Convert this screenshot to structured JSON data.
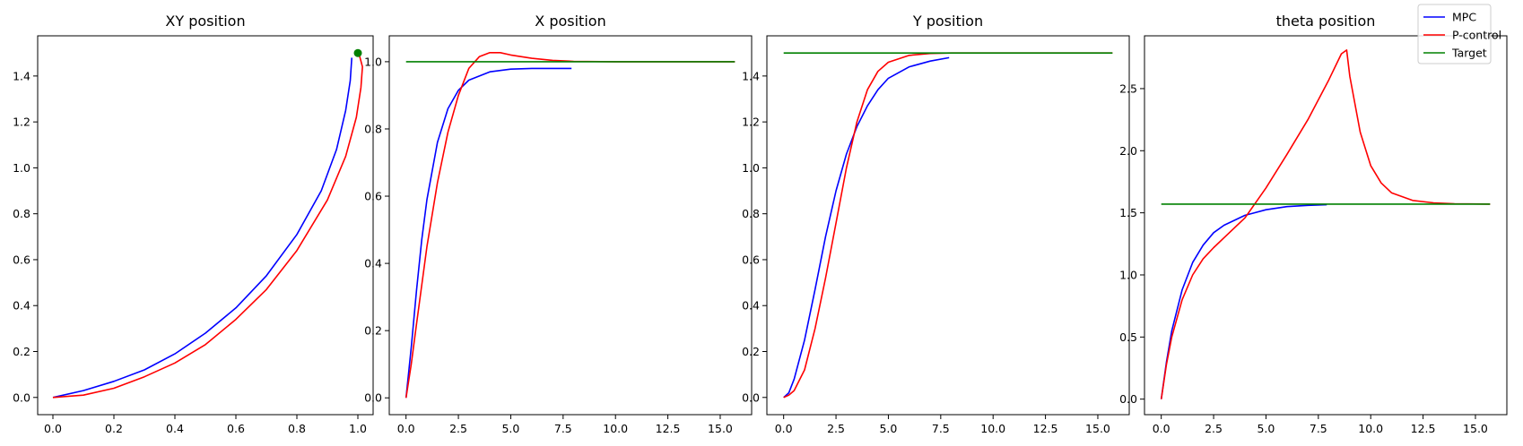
{
  "legend": {
    "entries": [
      {
        "label": "MPC",
        "color": "#0000ff"
      },
      {
        "label": "P-control",
        "color": "#ff0000"
      },
      {
        "label": "Target",
        "color": "#008000"
      }
    ]
  },
  "chart_data": [
    {
      "type": "line",
      "title": "XY position",
      "xlim": [
        -0.05,
        1.05
      ],
      "ylim": [
        -0.075,
        1.575
      ],
      "xticks": [
        0.0,
        0.2,
        0.4,
        0.6,
        0.8,
        1.0
      ],
      "xtick_labels": [
        "0.0",
        "0.2",
        "0.4",
        "0.6",
        "0.8",
        "1.0"
      ],
      "yticks": [
        0.0,
        0.2,
        0.4,
        0.6,
        0.8,
        1.0,
        1.2,
        1.4
      ],
      "ytick_labels": [
        "0.0",
        "0.2",
        "0.4",
        "0.6",
        "0.8",
        "1.0",
        "1.2",
        "1.4"
      ],
      "series": [
        {
          "name": "MPC",
          "color": "#0000ff",
          "points": [
            [
              0,
              0
            ],
            [
              0.1,
              0.03
            ],
            [
              0.2,
              0.07
            ],
            [
              0.3,
              0.12
            ],
            [
              0.4,
              0.19
            ],
            [
              0.5,
              0.28
            ],
            [
              0.6,
              0.39
            ],
            [
              0.7,
              0.53
            ],
            [
              0.8,
              0.71
            ],
            [
              0.88,
              0.9
            ],
            [
              0.93,
              1.08
            ],
            [
              0.96,
              1.25
            ],
            [
              0.975,
              1.38
            ],
            [
              0.98,
              1.48
            ]
          ]
        },
        {
          "name": "P-control",
          "color": "#ff0000",
          "points": [
            [
              0,
              0
            ],
            [
              0.1,
              0.01
            ],
            [
              0.2,
              0.04
            ],
            [
              0.3,
              0.09
            ],
            [
              0.4,
              0.15
            ],
            [
              0.5,
              0.23
            ],
            [
              0.6,
              0.34
            ],
            [
              0.7,
              0.47
            ],
            [
              0.8,
              0.64
            ],
            [
              0.9,
              0.86
            ],
            [
              0.96,
              1.05
            ],
            [
              0.995,
              1.22
            ],
            [
              1.01,
              1.35
            ],
            [
              1.015,
              1.44
            ],
            [
              1.005,
              1.49
            ],
            [
              0.99,
              1.5
            ]
          ]
        }
      ],
      "markers": [
        {
          "name": "Target",
          "color": "#008000",
          "x": 1.0,
          "y": 1.5
        }
      ]
    },
    {
      "type": "line",
      "title": "X position",
      "xlim": [
        -0.8,
        16.5
      ],
      "ylim": [
        -0.05,
        1.077
      ],
      "xticks": [
        0.0,
        2.5,
        5.0,
        7.5,
        10.0,
        12.5,
        15.0
      ],
      "xtick_labels": [
        "0.0",
        "2.5",
        "5.0",
        "7.5",
        "10.0",
        "12.5",
        "15.0"
      ],
      "yticks": [
        0.0,
        0.2,
        0.4,
        0.6,
        0.8,
        1.0
      ],
      "ytick_labels": [
        "0.0",
        "0.2",
        "0.4",
        "0.6",
        "0.8",
        "1.0"
      ],
      "series": [
        {
          "name": "MPC",
          "color": "#0000ff",
          "points": [
            [
              0,
              0
            ],
            [
              0.25,
              0.15
            ],
            [
              0.5,
              0.32
            ],
            [
              0.75,
              0.47
            ],
            [
              1.0,
              0.59
            ],
            [
              1.5,
              0.76
            ],
            [
              2.0,
              0.86
            ],
            [
              2.5,
              0.915
            ],
            [
              3.0,
              0.945
            ],
            [
              4.0,
              0.97
            ],
            [
              5.0,
              0.978
            ],
            [
              6.0,
              0.98
            ],
            [
              7.0,
              0.98
            ],
            [
              7.9,
              0.98
            ]
          ]
        },
        {
          "name": "P-control",
          "color": "#ff0000",
          "points": [
            [
              0,
              0
            ],
            [
              0.25,
              0.1
            ],
            [
              0.5,
              0.22
            ],
            [
              1.0,
              0.45
            ],
            [
              1.5,
              0.64
            ],
            [
              2.0,
              0.79
            ],
            [
              2.5,
              0.9
            ],
            [
              3.0,
              0.98
            ],
            [
              3.5,
              1.015
            ],
            [
              4.0,
              1.027
            ],
            [
              4.5,
              1.027
            ],
            [
              5.0,
              1.02
            ],
            [
              6.0,
              1.01
            ],
            [
              7.0,
              1.004
            ],
            [
              8.0,
              1.001
            ],
            [
              10.0,
              1.0
            ],
            [
              12.0,
              1.0
            ],
            [
              15.7,
              1.0
            ]
          ]
        },
        {
          "name": "Target",
          "color": "#008000",
          "points": [
            [
              0,
              1.0
            ],
            [
              15.7,
              1.0
            ]
          ]
        }
      ]
    },
    {
      "type": "line",
      "title": "Y position",
      "xlim": [
        -0.8,
        16.5
      ],
      "ylim": [
        -0.075,
        1.575
      ],
      "xticks": [
        0.0,
        2.5,
        5.0,
        7.5,
        10.0,
        12.5,
        15.0
      ],
      "xtick_labels": [
        "0.0",
        "2.5",
        "5.0",
        "7.5",
        "10.0",
        "12.5",
        "15.0"
      ],
      "yticks": [
        0.0,
        0.2,
        0.4,
        0.6,
        0.8,
        1.0,
        1.2,
        1.4
      ],
      "ytick_labels": [
        "0.0",
        "0.2",
        "0.4",
        "0.6",
        "0.8",
        "1.0",
        "1.2",
        "1.4"
      ],
      "series": [
        {
          "name": "MPC",
          "color": "#0000ff",
          "points": [
            [
              0,
              0
            ],
            [
              0.25,
              0.02
            ],
            [
              0.5,
              0.08
            ],
            [
              1.0,
              0.25
            ],
            [
              1.5,
              0.47
            ],
            [
              2.0,
              0.7
            ],
            [
              2.5,
              0.9
            ],
            [
              3.0,
              1.06
            ],
            [
              3.5,
              1.18
            ],
            [
              4.0,
              1.27
            ],
            [
              4.5,
              1.34
            ],
            [
              5.0,
              1.39
            ],
            [
              6.0,
              1.44
            ],
            [
              7.0,
              1.465
            ],
            [
              7.9,
              1.48
            ]
          ]
        },
        {
          "name": "P-control",
          "color": "#ff0000",
          "points": [
            [
              0,
              0
            ],
            [
              0.25,
              0.01
            ],
            [
              0.5,
              0.03
            ],
            [
              1.0,
              0.12
            ],
            [
              1.5,
              0.3
            ],
            [
              2.0,
              0.52
            ],
            [
              2.5,
              0.76
            ],
            [
              3.0,
              1.0
            ],
            [
              3.5,
              1.2
            ],
            [
              4.0,
              1.34
            ],
            [
              4.5,
              1.42
            ],
            [
              5.0,
              1.46
            ],
            [
              6.0,
              1.49
            ],
            [
              7.0,
              1.498
            ],
            [
              8.0,
              1.5
            ],
            [
              10.0,
              1.5
            ],
            [
              12.0,
              1.5
            ],
            [
              15.7,
              1.5
            ]
          ]
        },
        {
          "name": "Target",
          "color": "#008000",
          "points": [
            [
              0,
              1.5
            ],
            [
              15.7,
              1.5
            ]
          ]
        }
      ]
    },
    {
      "type": "line",
      "title": "theta position",
      "xlim": [
        -0.8,
        16.5
      ],
      "ylim": [
        -0.125,
        2.925
      ],
      "xticks": [
        0.0,
        2.5,
        5.0,
        7.5,
        10.0,
        12.5,
        15.0
      ],
      "xtick_labels": [
        "0.0",
        "2.5",
        "5.0",
        "7.5",
        "10.0",
        "12.5",
        "15.0"
      ],
      "yticks": [
        0.0,
        0.5,
        1.0,
        1.5,
        2.0,
        2.5
      ],
      "ytick_labels": [
        "0.0",
        "0.5",
        "1.0",
        "1.5",
        "2.0",
        "2.5"
      ],
      "series": [
        {
          "name": "MPC",
          "color": "#0000ff",
          "points": [
            [
              0,
              0
            ],
            [
              0.25,
              0.3
            ],
            [
              0.5,
              0.55
            ],
            [
              1.0,
              0.88
            ],
            [
              1.5,
              1.1
            ],
            [
              2.0,
              1.24
            ],
            [
              2.5,
              1.34
            ],
            [
              3.0,
              1.4
            ],
            [
              4.0,
              1.48
            ],
            [
              5.0,
              1.525
            ],
            [
              6.0,
              1.55
            ],
            [
              7.0,
              1.56
            ],
            [
              7.9,
              1.565
            ]
          ]
        },
        {
          "name": "P-control",
          "color": "#ff0000",
          "points": [
            [
              0,
              0
            ],
            [
              0.25,
              0.28
            ],
            [
              0.5,
              0.5
            ],
            [
              1.0,
              0.8
            ],
            [
              1.5,
              1.0
            ],
            [
              2.0,
              1.13
            ],
            [
              2.5,
              1.22
            ],
            [
              3.0,
              1.3
            ],
            [
              4.0,
              1.46
            ],
            [
              5.0,
              1.7
            ],
            [
              6.0,
              1.97
            ],
            [
              7.0,
              2.25
            ],
            [
              8.0,
              2.57
            ],
            [
              8.6,
              2.78
            ],
            [
              8.85,
              2.81
            ],
            [
              9.0,
              2.6
            ],
            [
              9.5,
              2.15
            ],
            [
              10.0,
              1.88
            ],
            [
              10.5,
              1.74
            ],
            [
              11.0,
              1.66
            ],
            [
              12.0,
              1.6
            ],
            [
              13.0,
              1.58
            ],
            [
              14.0,
              1.573
            ],
            [
              15.7,
              1.57
            ]
          ]
        },
        {
          "name": "Target",
          "color": "#008000",
          "points": [
            [
              0,
              1.57
            ],
            [
              15.7,
              1.57
            ]
          ]
        }
      ]
    }
  ]
}
